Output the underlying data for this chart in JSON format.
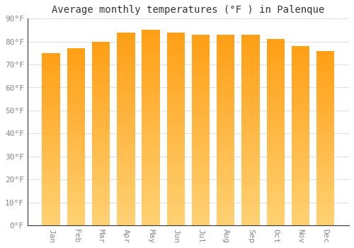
{
  "title": "Average monthly temperatures (°F ) in Palenque",
  "months": [
    "Jan",
    "Feb",
    "Mar",
    "Apr",
    "May",
    "Jun",
    "Jul",
    "Aug",
    "Sep",
    "Oct",
    "Nov",
    "Dec"
  ],
  "values": [
    75,
    77,
    80,
    84,
    85,
    84,
    83,
    83,
    83,
    81,
    78,
    76
  ],
  "bar_color_main": "#FFA620",
  "bar_color_left": "#FFB833",
  "bar_color_right": "#E8960A",
  "background_color": "#FFFFFF",
  "grid_color": "#DDDDDD",
  "ylim": [
    0,
    90
  ],
  "yticks": [
    0,
    10,
    20,
    30,
    40,
    50,
    60,
    70,
    80,
    90
  ],
  "ytick_labels": [
    "0°F",
    "10°F",
    "20°F",
    "30°F",
    "40°F",
    "50°F",
    "60°F",
    "70°F",
    "80°F",
    "90°F"
  ],
  "title_fontsize": 10,
  "tick_fontsize": 8,
  "tick_font_color": "#888888",
  "title_color": "#333333"
}
